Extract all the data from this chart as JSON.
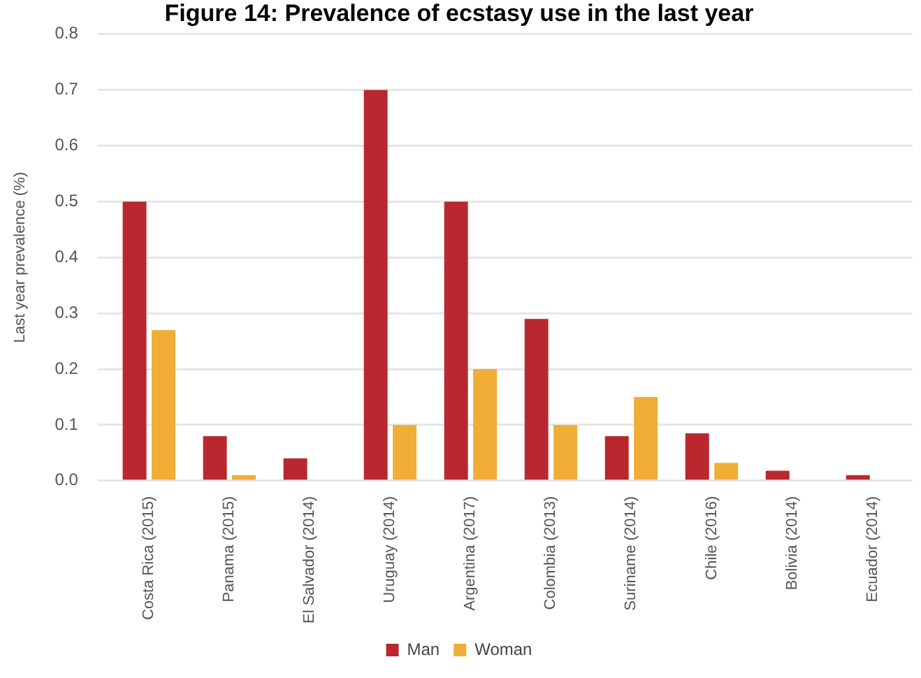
{
  "chart_data": {
    "type": "bar",
    "title": "Figure 14: Prevalence of ecstasy use in the last year",
    "ylabel": "Last year prevalence (%)",
    "categories": [
      "Costa Rica (2015)",
      "Panama (2015)",
      "El Salvador (2014)",
      "Uruguay (2014)",
      "Argentina (2017)",
      "Colombia (2013)",
      "Suriname (2014)",
      "Chile (2016)",
      "Bolivia (2014)",
      "Ecuador (2014)"
    ],
    "series": [
      {
        "name": "Man",
        "color": "#b8282e",
        "values": [
          0.5,
          0.08,
          0.04,
          0.7,
          0.5,
          0.29,
          0.08,
          0.085,
          0.018,
          0.01
        ]
      },
      {
        "name": "Woman",
        "color": "#f0ae37",
        "values": [
          0.27,
          0.01,
          0,
          0.1,
          0.2,
          0.1,
          0.15,
          0.032,
          0,
          0
        ]
      }
    ],
    "ylim": [
      0,
      0.8
    ],
    "yticks": [
      {
        "value": 0,
        "label": "0.0"
      },
      0.1,
      0.2,
      0.3,
      0.4,
      0.5,
      0.6,
      0.7,
      0.8
    ],
    "grid": "y",
    "legend": "bottom"
  }
}
